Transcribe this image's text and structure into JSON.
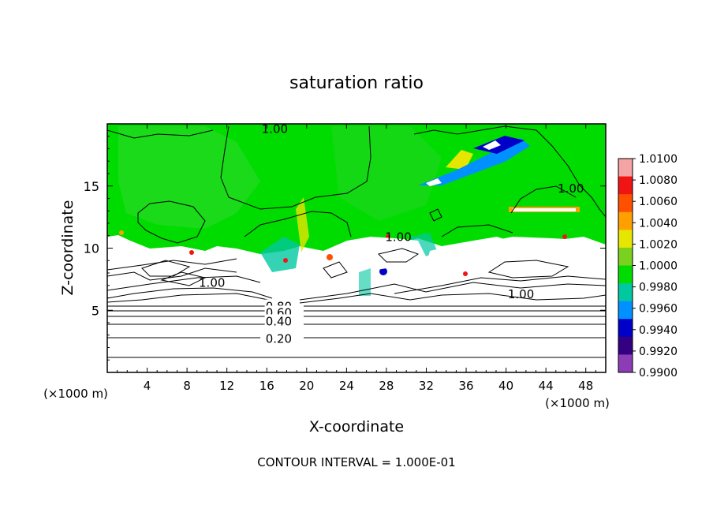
{
  "chart_data": {
    "type": "heatmap",
    "title": "saturation ratio",
    "xlabel": "X-coordinate",
    "ylabel": "Z-coordinate",
    "x_unit": "(×1000 m)",
    "z_unit": "(×1000 m)",
    "xlim": [
      0,
      50
    ],
    "ylim": [
      0,
      20
    ],
    "x_ticks": [
      4,
      8,
      12,
      16,
      20,
      24,
      28,
      32,
      36,
      40,
      44,
      48
    ],
    "y_ticks": [
      5,
      10,
      15
    ],
    "colorbar": {
      "levels": [
        "1.0100",
        "1.0080",
        "1.0060",
        "1.0040",
        "1.0020",
        "1.0000",
        "0.9980",
        "0.9960",
        "0.9940",
        "0.9920",
        "0.9900"
      ],
      "colors": [
        "#f4a4a4",
        "#f01414",
        "#ff5000",
        "#ffa000",
        "#e6e600",
        "#7ad21e",
        "#00dc00",
        "#00c8a0",
        "#0090ff",
        "#0000c8",
        "#320080",
        "#8c3cb4"
      ]
    },
    "contour_labels": [
      {
        "text": "1.00",
        "x": 16.8,
        "z": 19.6
      },
      {
        "text": "1.00",
        "x": 46.5,
        "z": 14.8
      },
      {
        "text": "1.00",
        "x": 29.2,
        "z": 10.9
      },
      {
        "text": "1.00",
        "x": 10.5,
        "z": 7.2
      },
      {
        "text": "1.00",
        "x": 41.5,
        "z": 6.3
      },
      {
        "text": "0.80",
        "x": 17.2,
        "z": 5.3
      },
      {
        "text": "0.60",
        "x": 17.2,
        "z": 4.8
      },
      {
        "text": "0.40",
        "x": 17.2,
        "z": 4.1
      },
      {
        "text": "0.20",
        "x": 17.2,
        "z": 2.7
      }
    ],
    "footer": "CONTOUR INTERVAL = 1.000E-01"
  }
}
